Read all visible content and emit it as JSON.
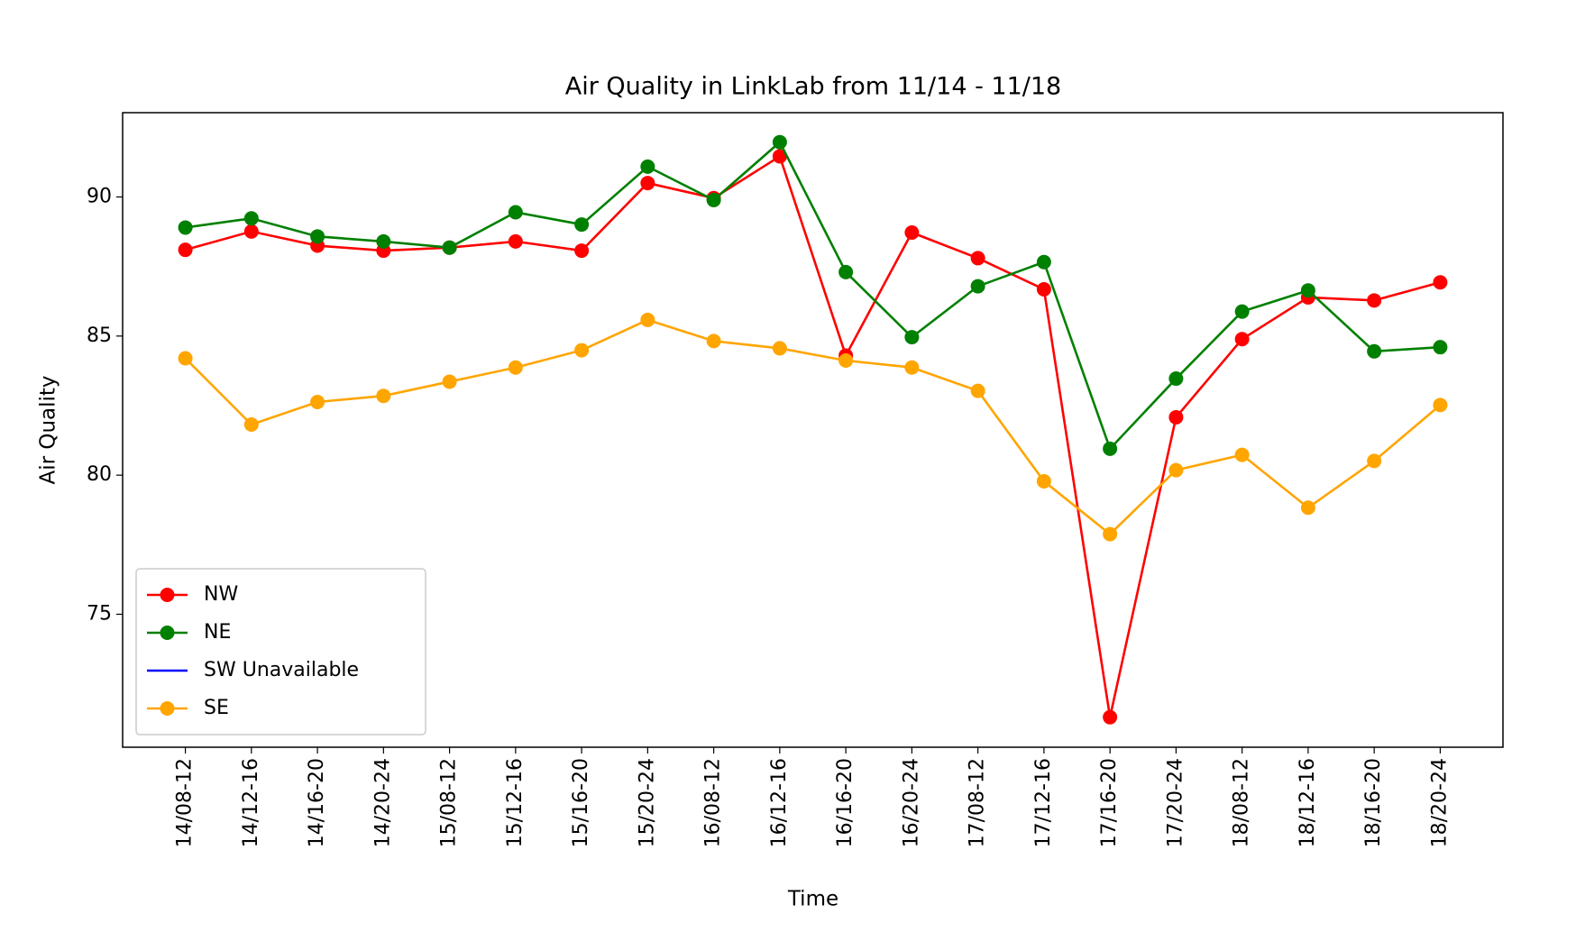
{
  "chart_data": {
    "type": "line",
    "title": "Air Quality in LinkLab from 11/14 - 11/18",
    "xlabel": "Time",
    "ylabel": "Air Quality",
    "categories": [
      "14/08-12",
      "14/12-16",
      "14/16-20",
      "14/20-24",
      "15/08-12",
      "15/12-16",
      "15/16-20",
      "15/20-24",
      "16/08-12",
      "16/12-16",
      "16/16-20",
      "16/20-24",
      "17/08-12",
      "17/12-16",
      "17/16-20",
      "17/20-24",
      "18/08-12",
      "18/12-16",
      "18/16-20",
      "18/20-24"
    ],
    "series": [
      {
        "name": "NW",
        "color": "red",
        "marker": true,
        "values": [
          88.1,
          88.76,
          88.25,
          88.07,
          88.18,
          88.4,
          88.07,
          90.5,
          89.96,
          91.46,
          84.3,
          88.72,
          87.8,
          86.68,
          71.3,
          82.08,
          84.89,
          86.39,
          86.28,
          86.93
        ]
      },
      {
        "name": "NE",
        "color": "green",
        "marker": true,
        "values": [
          88.9,
          89.23,
          88.58,
          88.4,
          88.18,
          89.45,
          89.01,
          91.09,
          89.89,
          91.97,
          87.3,
          84.96,
          86.79,
          87.66,
          80.95,
          83.47,
          85.88,
          86.64,
          84.45,
          84.6
        ]
      },
      {
        "name": "SW Unavailable",
        "color": "blue",
        "marker": false,
        "values": [
          null,
          null,
          null,
          null,
          null,
          null,
          null,
          null,
          null,
          null,
          null,
          null,
          null,
          null,
          null,
          null,
          null,
          null,
          null,
          null
        ]
      },
      {
        "name": "SE",
        "color": "orange",
        "marker": true,
        "values": [
          84.2,
          81.82,
          82.63,
          82.85,
          83.36,
          83.87,
          84.49,
          85.58,
          84.82,
          84.56,
          84.12,
          83.87,
          83.03,
          79.78,
          77.88,
          80.18,
          80.73,
          78.83,
          80.51,
          82.52
        ]
      }
    ],
    "ylim": [
      70.22,
      93.03
    ],
    "yticks": [
      75,
      80,
      85,
      90
    ],
    "legend": "lower left",
    "grid": false
  }
}
